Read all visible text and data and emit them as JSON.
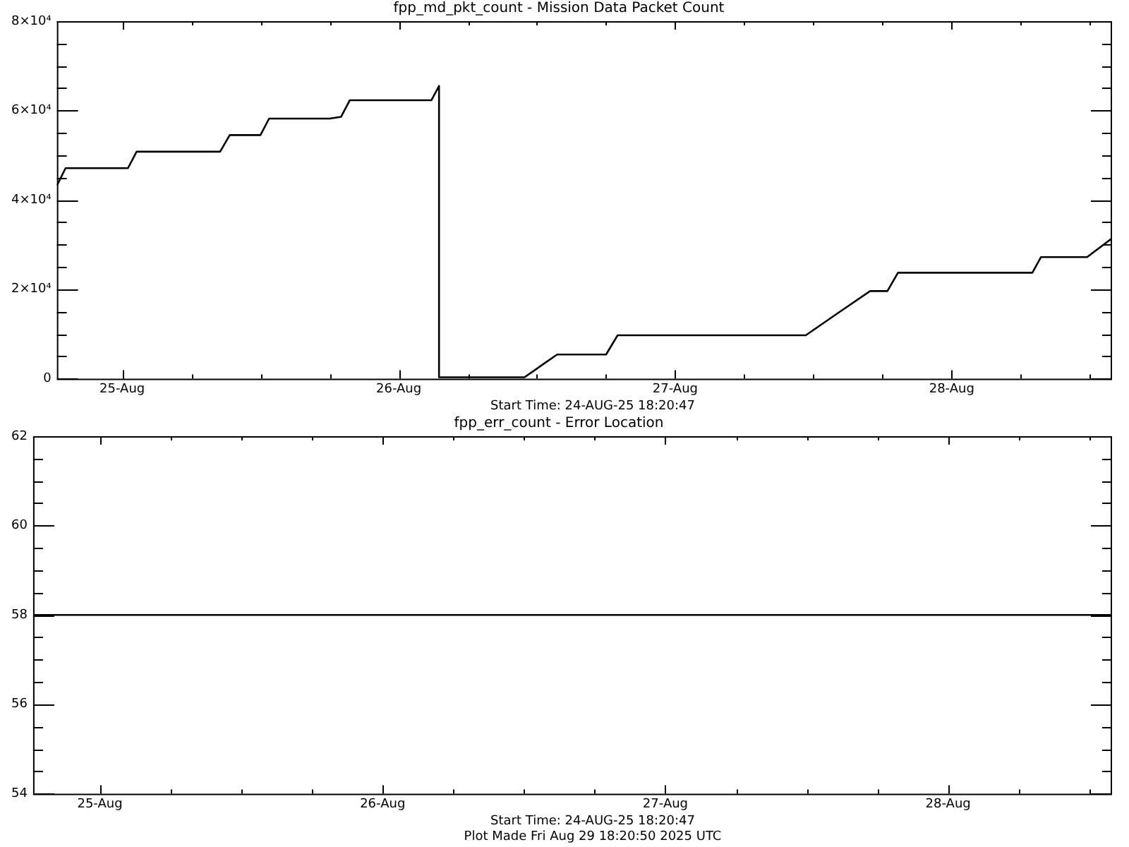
{
  "chart_data": [
    {
      "type": "line",
      "title": "fpp_md_pkt_count - Mission Data Packet Count",
      "color": "#000000",
      "grid": false,
      "legend": false,
      "marker": "none",
      "line_style": "solid",
      "x": [
        "2025-08-24T18:20",
        "2025-08-24T19:05",
        "2025-08-25T00:30",
        "2025-08-25T01:15",
        "2025-08-25T08:30",
        "2025-08-25T09:20",
        "2025-08-25T12:00",
        "2025-08-25T12:45",
        "2025-08-25T18:00",
        "2025-08-25T19:00",
        "2025-08-25T19:45",
        "2025-08-26T02:50",
        "2025-08-26T03:30",
        "2025-08-26T03:30",
        "2025-08-26T10:55",
        "2025-08-26T13:45",
        "2025-08-26T18:00",
        "2025-08-26T19:00",
        "2025-08-27T11:20",
        "2025-08-27T14:05",
        "2025-08-27T16:55",
        "2025-08-27T18:25",
        "2025-08-27T19:20",
        "2025-08-28T07:00",
        "2025-08-28T07:45",
        "2025-08-28T11:45",
        "2025-08-28T13:55"
      ],
      "values": [
        43200,
        47100,
        47100,
        50800,
        50800,
        54500,
        54500,
        58200,
        58200,
        58600,
        62300,
        62300,
        65500,
        300,
        300,
        5400,
        5400,
        9700,
        9700,
        14600,
        19600,
        19600,
        23700,
        23700,
        27200,
        27200,
        31400
      ],
      "xlim": [
        "2025-08-24T18:20",
        "2025-08-28T13:55"
      ],
      "xticks": [
        {
          "value": "2025-08-25",
          "label": "25-Aug"
        },
        {
          "value": "2025-08-25T06:00",
          "label": null
        },
        {
          "value": "2025-08-25T12:00",
          "label": null
        },
        {
          "value": "2025-08-25T18:00",
          "label": null
        },
        {
          "value": "2025-08-26",
          "label": "26-Aug"
        },
        {
          "value": "2025-08-26T06:00",
          "label": null
        },
        {
          "value": "2025-08-26T12:00",
          "label": null
        },
        {
          "value": "2025-08-26T18:00",
          "label": null
        },
        {
          "value": "2025-08-27",
          "label": "27-Aug"
        },
        {
          "value": "2025-08-27T06:00",
          "label": null
        },
        {
          "value": "2025-08-27T12:00",
          "label": null
        },
        {
          "value": "2025-08-27T18:00",
          "label": null
        },
        {
          "value": "2025-08-28",
          "label": "28-Aug"
        },
        {
          "value": "2025-08-28T06:00",
          "label": null
        },
        {
          "value": "2025-08-28T12:00",
          "label": null
        }
      ],
      "ylim": [
        0,
        80000
      ],
      "yticks": [
        0,
        {
          "value": 5000,
          "label": null
        },
        {
          "value": 10000,
          "label": null
        },
        {
          "value": 15000,
          "label": null
        },
        {
          "value": 20000,
          "label": "2×10⁴"
        },
        {
          "value": 25000,
          "label": null
        },
        {
          "value": 30000,
          "label": null
        },
        {
          "value": 35000,
          "label": null
        },
        {
          "value": 40000,
          "label": "4×10⁴"
        },
        {
          "value": 45000,
          "label": null
        },
        {
          "value": 50000,
          "label": null
        },
        {
          "value": 55000,
          "label": null
        },
        {
          "value": 60000,
          "label": "6×10⁴"
        },
        {
          "value": 65000,
          "label": null
        },
        {
          "value": 70000,
          "label": null
        },
        {
          "value": 75000,
          "label": null
        },
        {
          "value": 80000,
          "label": "8×10⁴"
        }
      ],
      "annotations": [
        "Start Time: 24-AUG-25  18:20:47"
      ]
    },
    {
      "type": "line",
      "title": "fpp_err_count - Error Location",
      "color": "#000000",
      "grid": false,
      "legend": false,
      "marker": "none",
      "line_style": "solid",
      "x": [
        "2025-08-24T18:20",
        "2025-08-28T13:55"
      ],
      "values": [
        58,
        58
      ],
      "xlim": [
        "2025-08-24T18:20",
        "2025-08-28T13:55"
      ],
      "xticks": [
        {
          "value": "2025-08-25",
          "label": "25-Aug"
        },
        {
          "value": "2025-08-25T06:00",
          "label": null
        },
        {
          "value": "2025-08-25T12:00",
          "label": null
        },
        {
          "value": "2025-08-25T18:00",
          "label": null
        },
        {
          "value": "2025-08-26",
          "label": "26-Aug"
        },
        {
          "value": "2025-08-26T06:00",
          "label": null
        },
        {
          "value": "2025-08-26T12:00",
          "label": null
        },
        {
          "value": "2025-08-26T18:00",
          "label": null
        },
        {
          "value": "2025-08-27",
          "label": "27-Aug"
        },
        {
          "value": "2025-08-27T06:00",
          "label": null
        },
        {
          "value": "2025-08-27T12:00",
          "label": null
        },
        {
          "value": "2025-08-27T18:00",
          "label": null
        },
        {
          "value": "2025-08-28",
          "label": "28-Aug"
        },
        {
          "value": "2025-08-28T06:00",
          "label": null
        },
        {
          "value": "2025-08-28T12:00",
          "label": null
        }
      ],
      "ylim": [
        54,
        62
      ],
      "yticks": [
        54,
        {
          "value": 54.5,
          "label": null
        },
        {
          "value": 55,
          "label": null
        },
        {
          "value": 55.5,
          "label": null
        },
        56,
        {
          "value": 56.5,
          "label": null
        },
        {
          "value": 57,
          "label": null
        },
        {
          "value": 57.5,
          "label": null
        },
        58,
        {
          "value": 58.5,
          "label": null
        },
        {
          "value": 59,
          "label": null
        },
        {
          "value": 59.5,
          "label": null
        },
        60,
        {
          "value": 60.5,
          "label": null
        },
        {
          "value": 61,
          "label": null
        },
        {
          "value": 61.5,
          "label": null
        },
        62
      ],
      "annotations": [
        "Start Time: 24-AUG-25  18:20:47",
        "Plot Made Fri Aug 29 18:20:50 2025 UTC"
      ]
    }
  ]
}
